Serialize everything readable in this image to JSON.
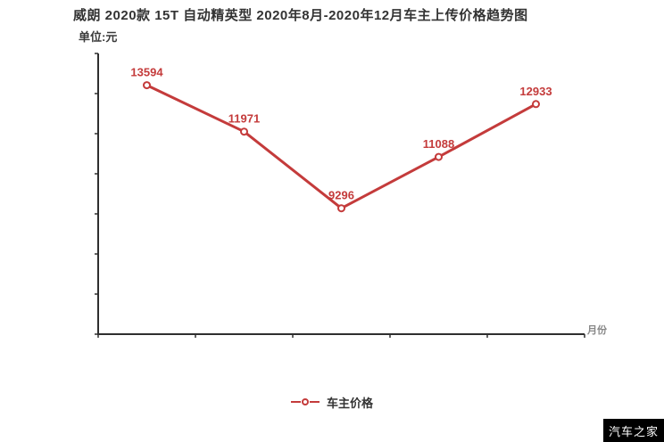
{
  "header": {
    "title": "威朗 2020款 15T 自动精英型 2020年8月-2020年12月车主上传价格趋势图",
    "unit_label": "单位:元"
  },
  "chart_data": {
    "type": "line",
    "title": "威朗 2020款 15T 自动精英型 2020年8月-2020年12月车主上传价格趋势图",
    "unit": "元",
    "xlabel": "月份",
    "ylabel": "",
    "grid": false,
    "legend_position": "bottom-center",
    "x_tick_count": 6,
    "x_tick_labels": [
      "",
      "",
      "",
      "",
      "",
      ""
    ],
    "y_tick_labels_visible": false,
    "axis_range_estimate": {
      "ymin": 4900,
      "ymax": 14700
    },
    "series": [
      {
        "name": "车主价格",
        "color": "#c43b3b",
        "marker": "open-circle",
        "values": [
          13594,
          11971,
          9296,
          11088,
          12933
        ],
        "point_labels": [
          "13594",
          "11971",
          "9296",
          "11088",
          "12933"
        ]
      }
    ]
  },
  "legend": {
    "label": "车主价格"
  },
  "watermark": {
    "text": "汽车之家"
  },
  "colors": {
    "line": "#c43b3b",
    "title": "#333333",
    "axis": "#2f2f2f",
    "muted": "#878787",
    "watermark_bg": "#000000",
    "watermark_fg": "#ffffff",
    "background": "#ffffff"
  }
}
